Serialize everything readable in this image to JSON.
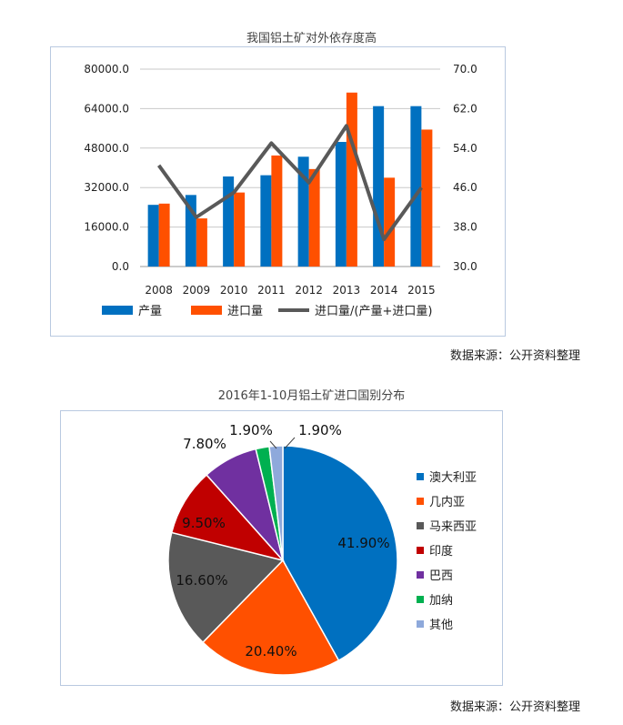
{
  "chart_data": [
    {
      "type": "bar",
      "title": "我国铝土矿对外依存度高",
      "categories": [
        "2008",
        "2009",
        "2010",
        "2011",
        "2012",
        "2013",
        "2014",
        "2015"
      ],
      "series": [
        {
          "name": "产量",
          "type": "bar",
          "axis": "left",
          "color": "#0070C0",
          "values": [
            25000,
            29000,
            36500,
            37000,
            44500,
            50500,
            65000,
            65000
          ]
        },
        {
          "name": "进口量",
          "type": "bar",
          "axis": "left",
          "color": "#FF5000",
          "values": [
            25500,
            19500,
            30000,
            45000,
            39500,
            70500,
            36000,
            55500
          ]
        },
        {
          "name": "进口量/(产量+进口量)",
          "type": "line",
          "axis": "right",
          "color": "#595959",
          "values": [
            50.5,
            40.0,
            45.0,
            55.0,
            47.0,
            58.5,
            35.5,
            46.0
          ]
        }
      ],
      "y_left": {
        "range": [
          0,
          80000
        ],
        "ticks": [
          "0.0",
          "16000.0",
          "32000.0",
          "48000.0",
          "64000.0",
          "80000.0"
        ],
        "tick_values": [
          0,
          16000,
          32000,
          48000,
          64000,
          80000
        ]
      },
      "y_right": {
        "range": [
          30,
          70
        ],
        "ticks": [
          "30.0",
          "38.0",
          "46.0",
          "54.0",
          "62.0",
          "70.0"
        ],
        "tick_values": [
          30,
          38,
          46,
          54,
          62,
          70
        ]
      },
      "grid": true,
      "legend_position": "bottom",
      "source": "数据来源：公开资料整理"
    },
    {
      "type": "pie",
      "title": "2016年1-10月铝土矿进口国别分布",
      "slices": [
        {
          "name": "澳大利亚",
          "value": 41.9,
          "label": "41.90%",
          "color": "#0070C0"
        },
        {
          "name": "几内亚",
          "value": 20.4,
          "label": "20.40%",
          "color": "#FF5000"
        },
        {
          "name": "马来西亚",
          "value": 16.6,
          "label": "16.60%",
          "color": "#595959"
        },
        {
          "name": "印度",
          "value": 9.5,
          "label": "9.50%",
          "color": "#C00000"
        },
        {
          "name": "巴西",
          "value": 7.8,
          "label": "7.80%",
          "color": "#7030A0"
        },
        {
          "name": "加纳",
          "value": 1.9,
          "label": "1.90%",
          "color": "#00B050"
        },
        {
          "name": "其他",
          "value": 1.9,
          "label": "1.90%",
          "color": "#8EA9DB"
        }
      ],
      "legend_position": "right",
      "source": "数据来源：公开资料整理"
    }
  ]
}
